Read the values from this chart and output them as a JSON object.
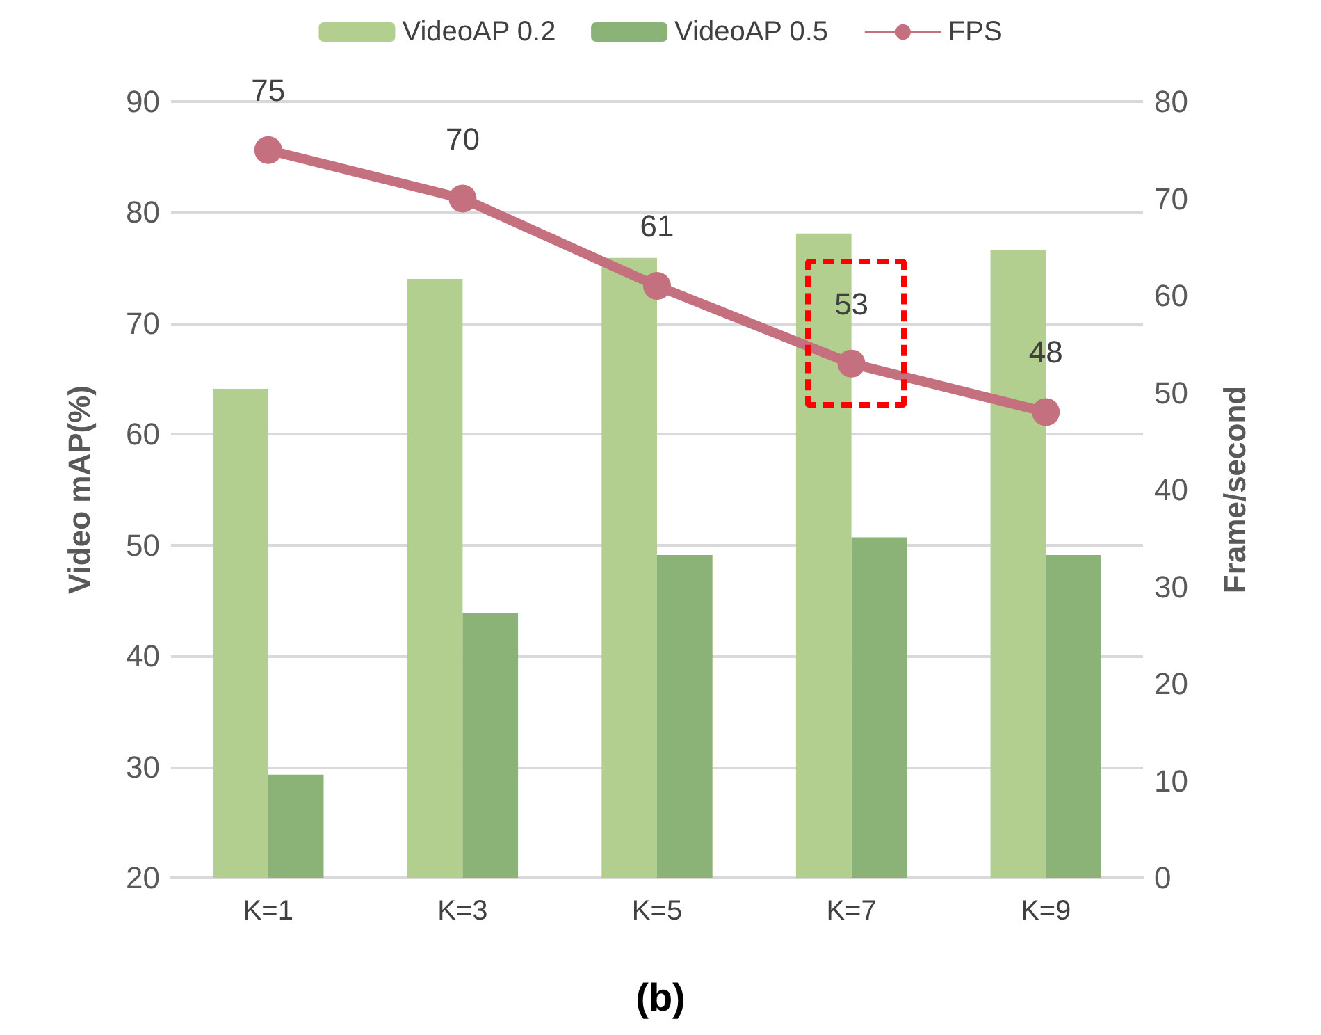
{
  "chart_data": {
    "type": "bar",
    "categories": [
      "K=1",
      "K=3",
      "K=5",
      "K=7",
      "K=9"
    ],
    "series": [
      {
        "name": "VideoAP 0.2",
        "color": "#b3cf8f",
        "values": [
          64.1,
          74.0,
          75.9,
          78.1,
          76.6
        ]
      },
      {
        "name": "VideoAP 0.5",
        "color": "#8bb378",
        "values": [
          29.3,
          43.9,
          49.1,
          50.7,
          49.1
        ]
      },
      {
        "name": "FPS",
        "type": "line",
        "axis": "y2",
        "color": "#c4707e",
        "values": [
          75,
          70,
          61,
          53,
          48
        ],
        "data_labels": true,
        "marker": "circle"
      }
    ],
    "ylabel": "Video mAP(%)",
    "y2label": "Frame/second",
    "ylim": [
      20,
      90
    ],
    "yticks": [
      20,
      30,
      40,
      50,
      60,
      70,
      80,
      90
    ],
    "y2lim": [
      0,
      80
    ],
    "y2ticks": [
      0,
      10,
      20,
      30,
      40,
      50,
      60,
      70,
      80
    ],
    "grid": "y",
    "legend": "top",
    "annotations": [
      "(b)"
    ]
  }
}
